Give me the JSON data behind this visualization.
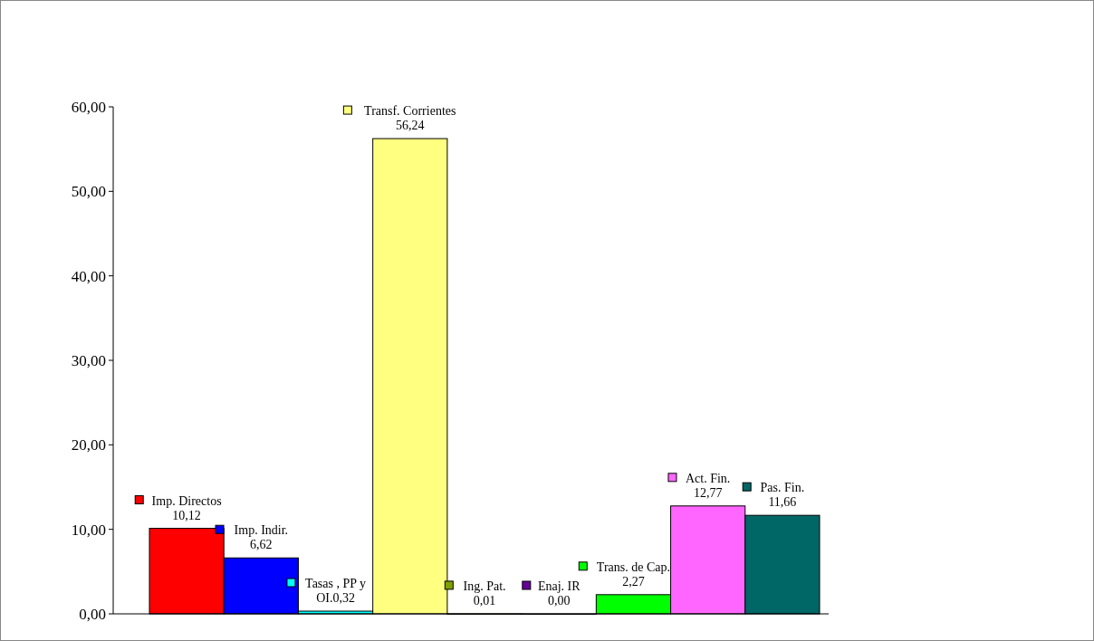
{
  "chart_data": {
    "type": "bar",
    "categories": [
      null,
      null,
      null,
      null,
      null,
      null,
      null,
      null,
      null
    ],
    "values": [
      10.12,
      6.62,
      0.32,
      56.24,
      0.01,
      0.0,
      2.27,
      12.77,
      11.66
    ],
    "value_labels": [
      "Imp. Directos 10,12",
      "Imp. Indir.  6,62",
      "Tasas , PP y OI.0,32",
      "Transf. Corrientes 56,24",
      "Ing. Pat. 0,01",
      "Enaj. IR  0,00",
      "Trans. de Cap. 2,27",
      "Act. Fin. 12,77",
      "Pas. Fin. 11,66"
    ],
    "colors": [
      "#ff0000",
      "#0000ff",
      "#00ffff",
      "#ffff80",
      "#80a000",
      "#660099",
      "#00ff00",
      "#ff66ff",
      "#006666"
    ],
    "ylim": [
      0,
      60
    ],
    "yticks": [
      {
        "value": 0,
        "label": "0,00"
      },
      {
        "value": 10,
        "label": "10,00"
      },
      {
        "value": 20,
        "label": "20,00"
      },
      {
        "value": 30,
        "label": "30,00"
      },
      {
        "value": 40,
        "label": "40,00"
      },
      {
        "value": 50,
        "label": "50,00"
      },
      {
        "value": 60,
        "label": "60,00"
      }
    ],
    "grid": false
  }
}
